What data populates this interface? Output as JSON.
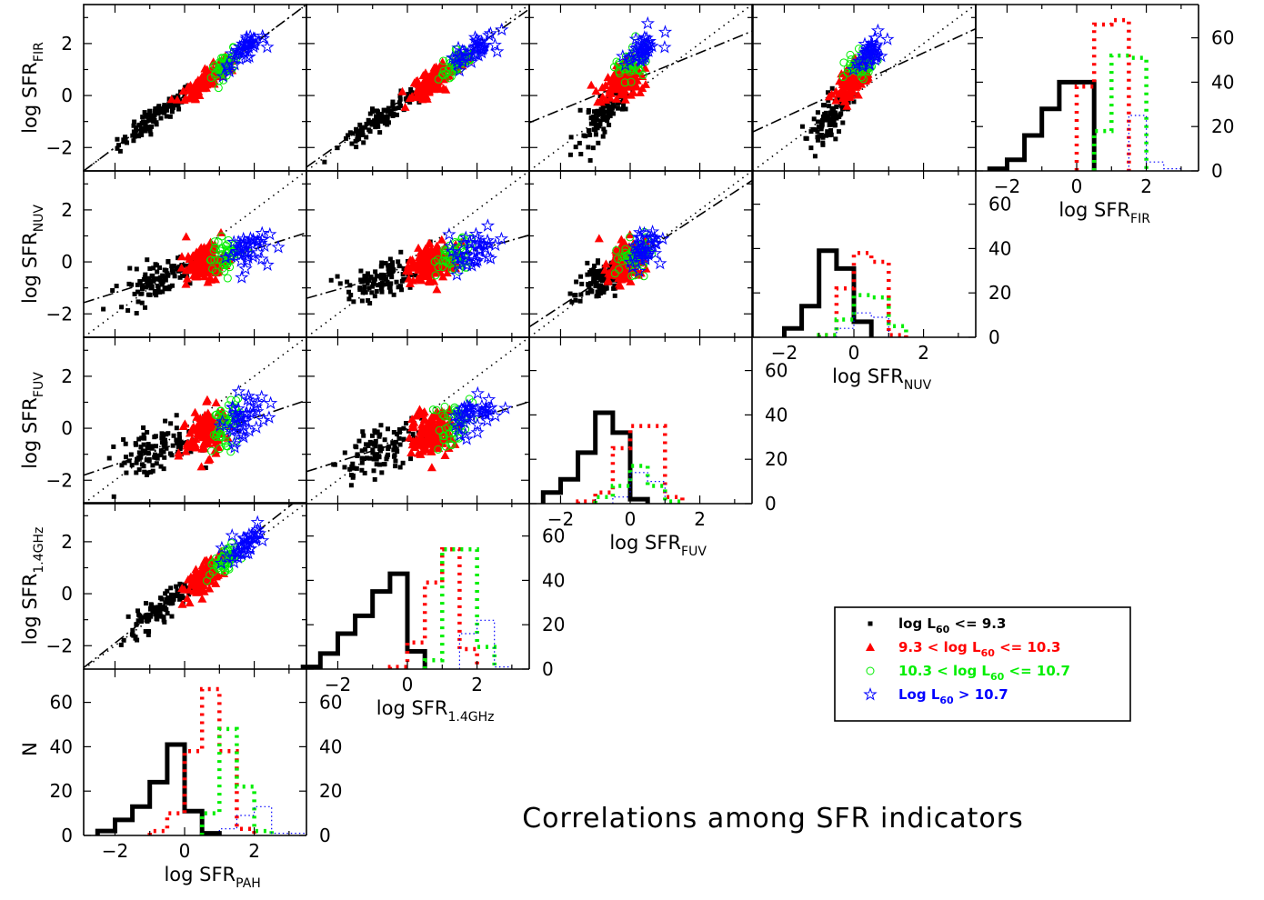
{
  "title": "Correlations among SFR indicators",
  "indicators": [
    {
      "key": "PAH",
      "main": "log SFR",
      "sub": "PAH"
    },
    {
      "key": "1.4GHz",
      "main": "log SFR",
      "sub": "1.4GHz"
    },
    {
      "key": "FUV",
      "main": "log SFR",
      "sub": "FUV"
    },
    {
      "key": "NUV",
      "main": "log SFR",
      "sub": "NUV"
    },
    {
      "key": "FIR",
      "main": "log SFR",
      "sub": "FIR"
    }
  ],
  "hist_ylabel": "N",
  "legend": [
    {
      "pre": "log L",
      "sub": "60",
      "post": " <= 9.3",
      "color": "#000000",
      "marker": "square"
    },
    {
      "pre": "9.3 < log L",
      "sub": "60",
      "post": " <= 10.3",
      "color": "#ff0000",
      "marker": "triangle"
    },
    {
      "pre": "10.3 < log L",
      "sub": "60",
      "post": " <= 10.7",
      "color": "#00ee00",
      "marker": "circle"
    },
    {
      "pre": "Log L",
      "sub": "60",
      "post": " > 10.7",
      "color": "#0000ff",
      "marker": "star"
    }
  ],
  "chart_data": {
    "type": "scatter",
    "layout": "corner plot: scatter panels below the diagonal, histograms on the diagonal",
    "axis_range": [
      -2.9,
      3.5
    ],
    "x_ticks": [
      -2,
      0,
      2
    ],
    "y_ticks": [
      -2,
      0,
      2
    ],
    "hist_ylim": [
      0,
      75
    ],
    "hist_ticks": [
      0,
      20,
      40,
      60
    ],
    "groups": [
      {
        "name": "log L60 <= 9.3",
        "color": "#000000",
        "marker": "square",
        "n": 110,
        "center": -0.8,
        "spread": 0.55
      },
      {
        "name": "9.3 < log L60 <= 10.3",
        "color": "#ff0000",
        "marker": "triangle",
        "n": 140,
        "center": 0.6,
        "spread": 0.28
      },
      {
        "name": "10.3 < log L60 <= 10.7",
        "color": "#00ee00",
        "marker": "circle",
        "n": 50,
        "center": 1.2,
        "spread": 0.22
      },
      {
        "name": "log L60 > 10.7",
        "color": "#0000ff",
        "marker": "star",
        "n": 40,
        "center": 1.7,
        "spread": 0.3
      }
    ],
    "panels": [
      {
        "row": "FIR",
        "col": "PAH",
        "fit": [
          0.0,
          1.0
        ]
      },
      {
        "row": "FIR",
        "col": "1.4GHz",
        "fit": [
          0.0,
          0.95
        ]
      },
      {
        "row": "FIR",
        "col": "FUV",
        "fit": [
          0.55,
          0.55
        ]
      },
      {
        "row": "FIR",
        "col": "NUV",
        "fit": [
          0.4,
          0.62
        ]
      },
      {
        "row": "NUV",
        "col": "PAH",
        "fit": [
          -0.35,
          0.42
        ]
      },
      {
        "row": "NUV",
        "col": "1.4GHz",
        "fit": [
          -0.3,
          0.38
        ]
      },
      {
        "row": "NUV",
        "col": "FUV",
        "fit": [
          0.05,
          0.88
        ]
      },
      {
        "row": "FUV",
        "col": "PAH",
        "fit": [
          -0.5,
          0.45
        ]
      },
      {
        "row": "FUV",
        "col": "1.4GHz",
        "fit": [
          -0.45,
          0.42
        ]
      },
      {
        "row": "1.4GHz",
        "col": "PAH",
        "fit": [
          0.2,
          1.05
        ]
      }
    ],
    "row_relations": {
      "FIR": {
        "slope": 1.0,
        "offset": 0.0,
        "scatter": 0.2
      },
      "NUV": {
        "slope": 0.45,
        "offset": -0.3,
        "scatter": 0.35
      },
      "FUV": {
        "slope": 0.48,
        "offset": -0.45,
        "scatter": 0.45
      },
      "1.4GHz": {
        "slope": 1.05,
        "offset": 0.1,
        "scatter": 0.25
      }
    },
    "histograms": [
      {
        "indicator": "PAH",
        "bin_width": 0.5,
        "series": [
          {
            "name": "log L60 <= 9.3",
            "style": "solid",
            "start": -2.5,
            "counts": [
              2,
              7,
              13,
              24,
              41,
              11,
              1
            ]
          },
          {
            "name": "9.3 < log L60 <= 10.3",
            "style": "dotted",
            "start": -1.0,
            "counts": [
              2,
              10,
              38,
              66,
              38,
              3
            ]
          },
          {
            "name": "10.3 < log L60 <= 10.7",
            "style": "dotted",
            "start": 0.5,
            "counts": [
              10,
              48,
              22,
              2
            ]
          },
          {
            "name": "log L60 > 10.7",
            "style": "thin-dotted",
            "start": 1.0,
            "counts": [
              3,
              9,
              13,
              1,
              1
            ]
          }
        ]
      },
      {
        "indicator": "1.4GHz",
        "bin_width": 0.5,
        "series": [
          {
            "name": "log L60 <= 9.3",
            "style": "solid",
            "start": -3.0,
            "counts": [
              1,
              7,
              16,
              24,
              35,
              43,
              8
            ]
          },
          {
            "name": "9.3 < log L60 <= 10.3",
            "style": "dotted",
            "start": -0.5,
            "counts": [
              1,
              12,
              39,
              54,
              9
            ]
          },
          {
            "name": "10.3 < log L60 <= 10.7",
            "style": "dotted",
            "start": 0.5,
            "counts": [
              4,
              54,
              54,
              10
            ]
          },
          {
            "name": "log L60 > 10.7",
            "style": "thin-dotted",
            "start": 1.5,
            "counts": [
              16,
              22,
              1
            ]
          }
        ]
      },
      {
        "indicator": "FUV",
        "bin_width": 0.5,
        "series": [
          {
            "name": "log L60 <= 9.3",
            "style": "solid",
            "start": -2.5,
            "counts": [
              5,
              11,
              23,
              41,
              32,
              2
            ]
          },
          {
            "name": "9.3 < log L60 <= 10.3",
            "style": "dotted",
            "start": -1.5,
            "counts": [
              1,
              5,
              25,
              35,
              35,
              3
            ]
          },
          {
            "name": "10.3 < log L60 <= 10.7",
            "style": "dotted",
            "start": -1.0,
            "counts": [
              3,
              8,
              17,
              8,
              1
            ]
          },
          {
            "name": "log L60 > 10.7",
            "style": "thin-dotted",
            "start": -0.5,
            "counts": [
              3,
              14,
              10
            ]
          }
        ]
      },
      {
        "indicator": "NUV",
        "bin_width": 0.5,
        "series": [
          {
            "name": "log L60 <= 9.3",
            "style": "solid",
            "start": -2.0,
            "counts": [
              4,
              14,
              39,
              31,
              7
            ]
          },
          {
            "name": "9.3 < log L60 <= 10.3",
            "style": "dotted",
            "start": -1.0,
            "counts": [
              1,
              22,
              38,
              34,
              1
            ]
          },
          {
            "name": "10.3 < log L60 <= 10.7",
            "style": "dotted",
            "start": -1.0,
            "counts": [
              1,
              8,
              19,
              18,
              5
            ]
          },
          {
            "name": "log L60 > 10.7",
            "style": "thin-dotted",
            "start": -0.5,
            "counts": [
              4,
              11,
              9
            ]
          }
        ]
      },
      {
        "indicator": "FIR",
        "bin_width": 0.5,
        "series": [
          {
            "name": "log L60 <= 9.3",
            "style": "solid",
            "start": -2.5,
            "counts": [
              1,
              5,
              16,
              28,
              40,
              40
            ]
          },
          {
            "name": "9.3 < log L60 <= 10.3",
            "style": "dotted",
            "start": 0.0,
            "counts": [
              38,
              66,
              68
            ]
          },
          {
            "name": "10.3 < log L60 <= 10.7",
            "style": "dotted",
            "start": 0.5,
            "counts": [
              18,
              52,
              51
            ]
          },
          {
            "name": "log L60 > 10.7",
            "style": "thin-dotted",
            "start": 1.5,
            "counts": [
              25,
              4,
              1
            ]
          }
        ]
      }
    ]
  }
}
